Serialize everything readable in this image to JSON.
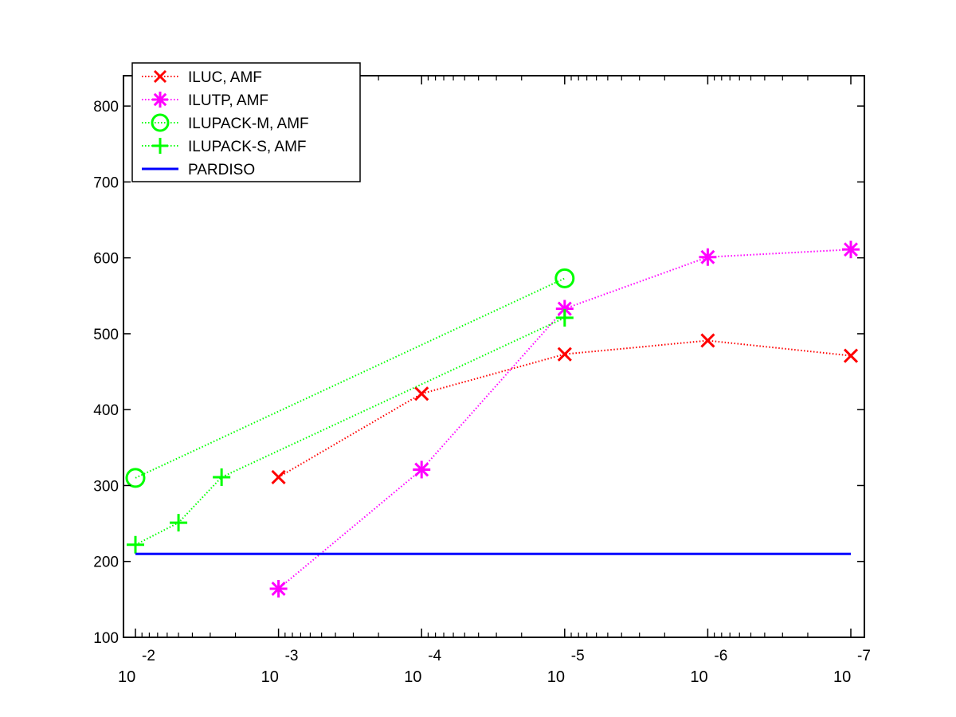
{
  "chart_data": {
    "type": "line",
    "title": "",
    "xlabel": "",
    "ylabel": "",
    "x_scale": "log",
    "x_reversed": true,
    "xlim": [
      0.01,
      1e-07
    ],
    "ylim": [
      100,
      840
    ],
    "grid": false,
    "legend_position": "top-left",
    "x_ticks": [
      {
        "value": 0.01,
        "base": "10",
        "exp": "-2"
      },
      {
        "value": 0.001,
        "base": "10",
        "exp": "-3"
      },
      {
        "value": 0.0001,
        "base": "10",
        "exp": "-4"
      },
      {
        "value": 1e-05,
        "base": "10",
        "exp": "-5"
      },
      {
        "value": 1e-06,
        "base": "10",
        "exp": "-6"
      },
      {
        "value": 1e-07,
        "base": "10",
        "exp": "-7"
      }
    ],
    "y_ticks": [
      100,
      200,
      300,
      400,
      500,
      600,
      700,
      800
    ],
    "series": [
      {
        "name": "ILUC, AMF",
        "color": "#ff0000",
        "marker": "x",
        "line": "dotted",
        "points": [
          [
            0.001,
            311
          ],
          [
            0.0001,
            421
          ],
          [
            1e-05,
            473
          ],
          [
            1e-06,
            491
          ],
          [
            1e-07,
            471
          ]
        ]
      },
      {
        "name": "ILUTP, AMF",
        "color": "#ff00ff",
        "marker": "asterisk",
        "line": "dotted",
        "points": [
          [
            0.001,
            164
          ],
          [
            0.0001,
            321
          ],
          [
            1e-05,
            533
          ],
          [
            1e-06,
            601
          ],
          [
            1e-07,
            611
          ]
        ]
      },
      {
        "name": "ILUPACK-M, AMF",
        "color": "#00ff00",
        "marker": "circle",
        "line": "dotted",
        "points": [
          [
            0.01,
            310
          ],
          [
            1e-05,
            573
          ]
        ]
      },
      {
        "name": "ILUPACK-S, AMF",
        "color": "#00ff00",
        "marker": "plus",
        "line": "dotted",
        "points": [
          [
            0.01,
            222
          ],
          [
            0.005,
            251
          ],
          [
            0.0025,
            311
          ],
          [
            1e-05,
            521
          ]
        ]
      },
      {
        "name": "PARDISO",
        "color": "#0000ff",
        "marker": "none",
        "line": "solid",
        "points": [
          [
            0.01,
            210
          ],
          [
            1e-07,
            210
          ]
        ]
      }
    ]
  }
}
